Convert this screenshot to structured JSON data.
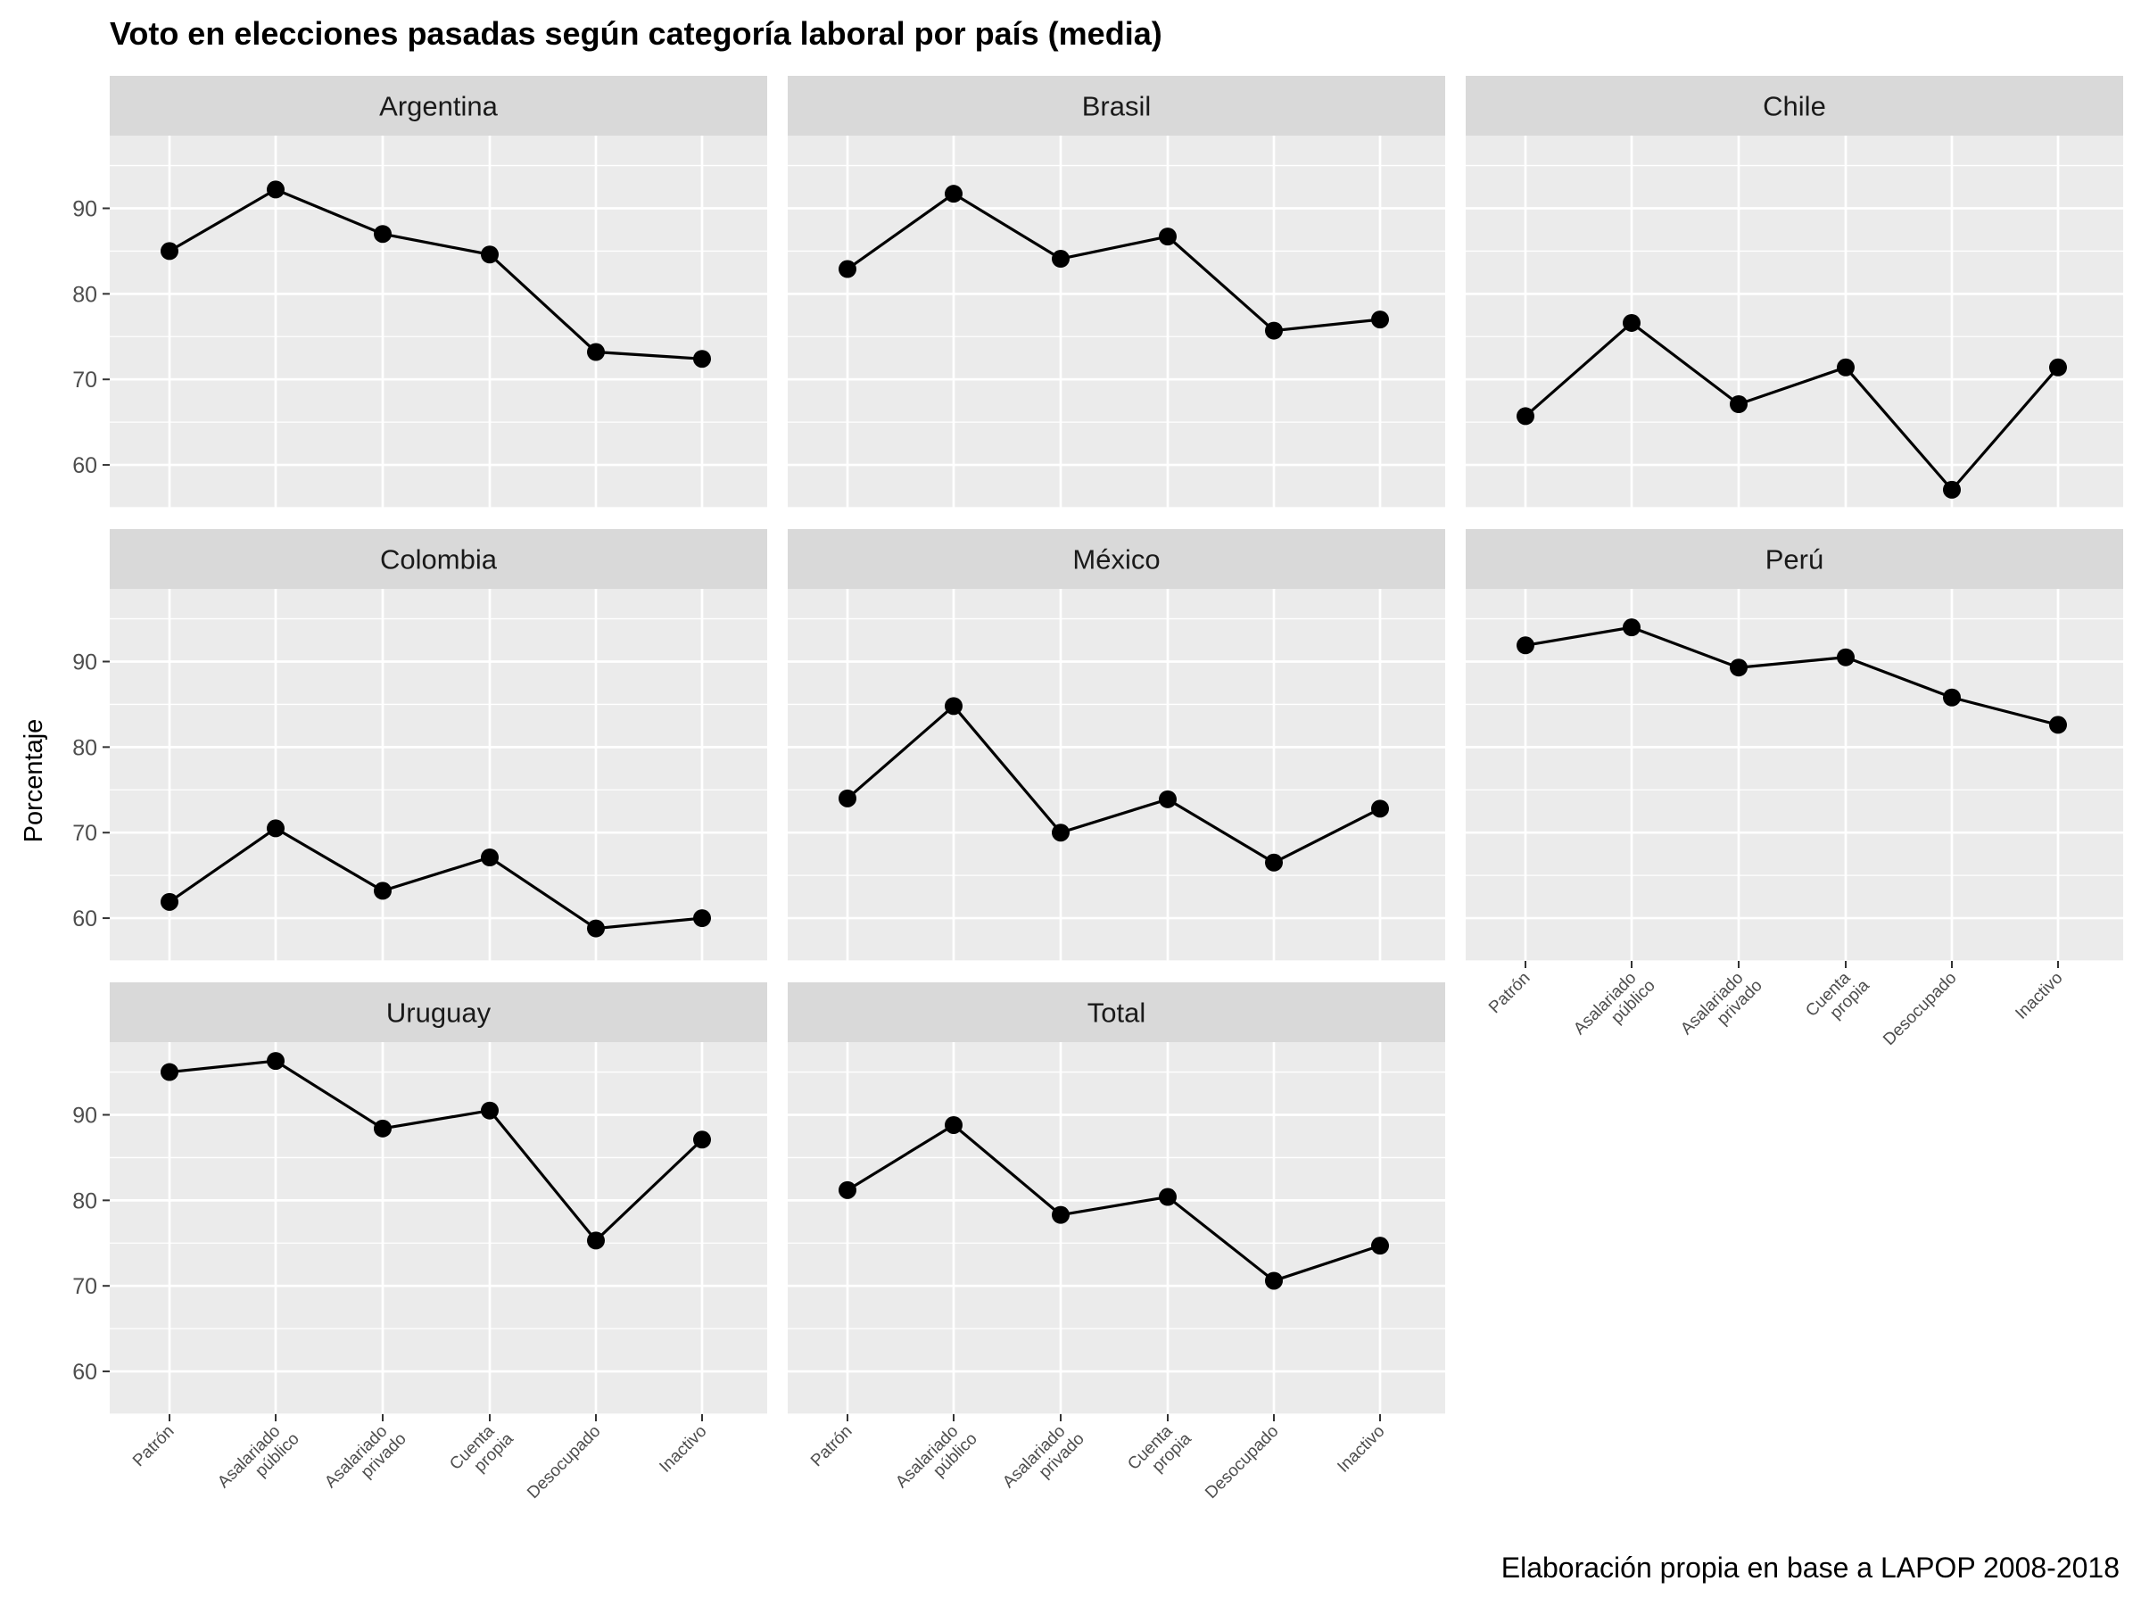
{
  "chart_data": {
    "type": "line",
    "title": "Voto en elecciones pasadas según categoría laboral por país (media)",
    "ylabel": "Porcentaje",
    "caption": "Elaboración propia en base a LAPOP 2008-2018",
    "categories": [
      [
        "Patrón"
      ],
      [
        "Asalariado",
        "público"
      ],
      [
        "Asalariado",
        "privado"
      ],
      [
        "Cuenta",
        "propia"
      ],
      [
        "Desocupado"
      ],
      [
        "Inactivo"
      ]
    ],
    "yticks": [
      "60",
      "70",
      "80",
      "90"
    ],
    "ylim": [
      55,
      98.5
    ],
    "grid": true,
    "panels": [
      {
        "name": "Argentina",
        "values": [
          85.0,
          92.2,
          87.0,
          84.6,
          73.2,
          72.4
        ]
      },
      {
        "name": "Brasil",
        "values": [
          82.9,
          91.7,
          84.1,
          86.7,
          75.7,
          77.0
        ]
      },
      {
        "name": "Chile",
        "values": [
          65.7,
          76.6,
          67.1,
          71.4,
          57.1,
          71.4
        ]
      },
      {
        "name": "Colombia",
        "values": [
          61.9,
          70.5,
          63.2,
          67.1,
          58.8,
          60.0
        ]
      },
      {
        "name": "México",
        "values": [
          74.0,
          84.8,
          70.0,
          73.9,
          66.5,
          72.8
        ]
      },
      {
        "name": "Perú",
        "values": [
          91.9,
          94.0,
          89.3,
          90.5,
          85.8,
          82.6
        ]
      },
      {
        "name": "Uruguay",
        "values": [
          95.0,
          96.3,
          88.4,
          90.5,
          75.3,
          87.1
        ]
      },
      {
        "name": "Total",
        "values": [
          81.2,
          88.8,
          78.3,
          80.4,
          70.6,
          74.7
        ]
      }
    ],
    "colors": {
      "panel_background": "#ebebeb",
      "strip_background": "#d9d9d9",
      "grid": "#ffffff",
      "line": "#000000",
      "point": "#000000"
    }
  }
}
